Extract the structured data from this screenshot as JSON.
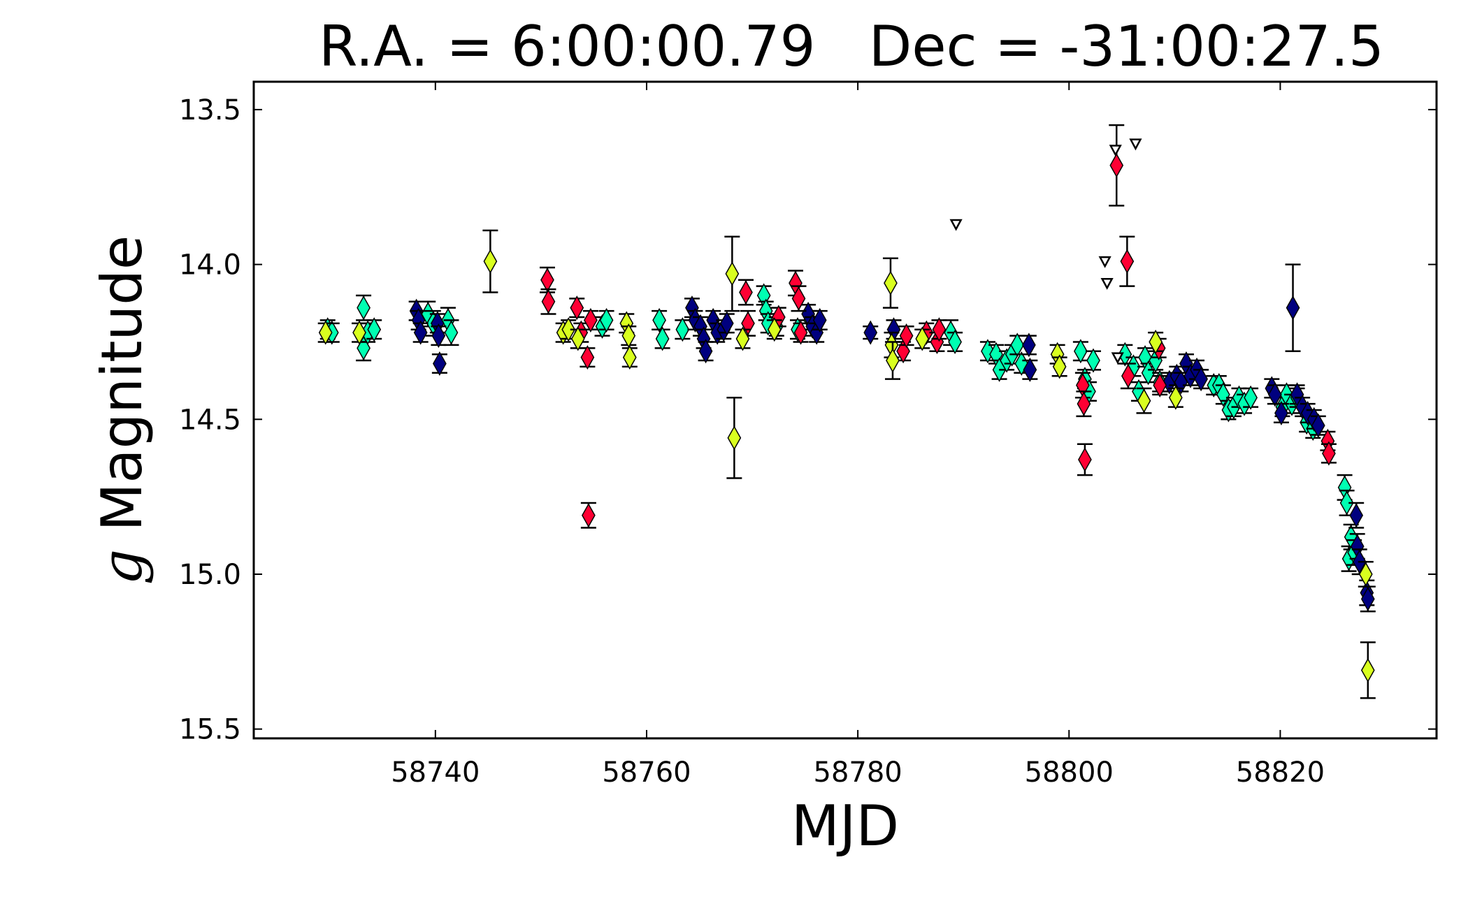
{
  "chart_data": {
    "type": "scatter",
    "title": "R.A. = 6:00:00.79   Dec = -31:00:27.5",
    "xlabel": "MJD",
    "ylabel_italic": "g",
    "ylabel_rest": " Magnitude",
    "xlim": [
      58722.8,
      58834.8
    ],
    "ylim": [
      15.53,
      13.41
    ],
    "y_inverted": true,
    "grid": false,
    "xticks": [
      58740,
      58760,
      58780,
      58800,
      58820
    ],
    "xtick_labels": [
      "58740",
      "58760",
      "58780",
      "58800",
      "58820"
    ],
    "yticks": [
      13.5,
      14.0,
      14.5,
      15.0,
      15.5
    ],
    "ytick_labels": [
      "13.5",
      "14.0",
      "14.5",
      "15.0",
      "15.5"
    ],
    "series": [
      {
        "color": "#00ffb2",
        "marker": "diamond",
        "points": [
          [
            58729.8,
            14.21,
            0.03
          ],
          [
            58730.2,
            14.22,
            0.03
          ],
          [
            58733.2,
            14.14,
            0.04
          ],
          [
            58733.2,
            14.27,
            0.04
          ],
          [
            58733.6,
            14.22,
            0.03
          ],
          [
            58734.2,
            14.21,
            0.03
          ],
          [
            58739.3,
            14.16,
            0.04
          ],
          [
            58739.8,
            14.19,
            0.04
          ],
          [
            58741.2,
            14.18,
            0.04
          ],
          [
            58741.5,
            14.22,
            0.04
          ],
          [
            58755.8,
            14.2,
            0.03
          ],
          [
            58756.2,
            14.18,
            0.03
          ],
          [
            58761.2,
            14.18,
            0.03
          ],
          [
            58761.5,
            14.24,
            0.03
          ],
          [
            58763.4,
            14.21,
            0.03
          ],
          [
            58771.1,
            14.1,
            0.03
          ],
          [
            58771.3,
            14.15,
            0.03
          ],
          [
            58771.5,
            14.19,
            0.03
          ],
          [
            58772.3,
            14.2,
            0.03
          ],
          [
            58774.3,
            14.21,
            0.03
          ],
          [
            58775.5,
            14.18,
            0.03
          ],
          [
            58788.8,
            14.22,
            0.04
          ],
          [
            58789.2,
            14.25,
            0.03
          ],
          [
            58792.3,
            14.28,
            0.03
          ],
          [
            58793.1,
            14.29,
            0.03
          ],
          [
            58793.4,
            14.34,
            0.03
          ],
          [
            58794.1,
            14.31,
            0.03
          ],
          [
            58794.6,
            14.29,
            0.03
          ],
          [
            58795.1,
            14.26,
            0.03
          ],
          [
            58795.5,
            14.32,
            0.03
          ],
          [
            58801.1,
            14.28,
            0.03
          ],
          [
            58801.5,
            14.37,
            0.03
          ],
          [
            58801.9,
            14.41,
            0.03
          ],
          [
            58802.3,
            14.31,
            0.03
          ],
          [
            58805.3,
            14.29,
            0.03
          ],
          [
            58806.1,
            14.33,
            0.03
          ],
          [
            58806.6,
            14.41,
            0.03
          ],
          [
            58807.2,
            14.3,
            0.03
          ],
          [
            58807.5,
            14.35,
            0.03
          ],
          [
            58808.2,
            14.31,
            0.03
          ],
          [
            58808.6,
            14.38,
            0.03
          ],
          [
            58813.7,
            14.39,
            0.03
          ],
          [
            58814.2,
            14.39,
            0.03
          ],
          [
            58814.6,
            14.42,
            0.03
          ],
          [
            58815.1,
            14.47,
            0.03
          ],
          [
            58815.6,
            14.46,
            0.03
          ],
          [
            58816.1,
            14.43,
            0.03
          ],
          [
            58816.6,
            14.45,
            0.03
          ],
          [
            58817.2,
            14.43,
            0.03
          ],
          [
            58820.2,
            14.46,
            0.03
          ],
          [
            58820.6,
            14.42,
            0.03
          ],
          [
            58821.1,
            14.45,
            0.03
          ],
          [
            58821.6,
            14.43,
            0.03
          ],
          [
            58822.5,
            14.51,
            0.03
          ],
          [
            58823.1,
            14.53,
            0.03
          ],
          [
            58826.1,
            14.72,
            0.04
          ],
          [
            58826.3,
            14.77,
            0.04
          ],
          [
            58826.5,
            14.95,
            0.04
          ],
          [
            58826.7,
            14.88,
            0.04
          ],
          [
            58827.0,
            14.93,
            0.04
          ]
        ]
      },
      {
        "color": "#00007f",
        "marker": "diamond",
        "points": [
          [
            58738.2,
            14.15,
            0.03
          ],
          [
            58738.4,
            14.18,
            0.03
          ],
          [
            58738.6,
            14.22,
            0.03
          ],
          [
            58740.2,
            14.19,
            0.03
          ],
          [
            58740.3,
            14.23,
            0.03
          ],
          [
            58740.4,
            14.32,
            0.03
          ],
          [
            58764.3,
            14.14,
            0.03
          ],
          [
            58764.6,
            14.18,
            0.03
          ],
          [
            58765.1,
            14.2,
            0.03
          ],
          [
            58765.4,
            14.24,
            0.03
          ],
          [
            58765.6,
            14.28,
            0.03
          ],
          [
            58766.3,
            14.18,
            0.03
          ],
          [
            58766.7,
            14.22,
            0.03
          ],
          [
            58767.3,
            14.21,
            0.03
          ],
          [
            58767.6,
            14.19,
            0.03
          ],
          [
            58775.3,
            14.16,
            0.03
          ],
          [
            58775.7,
            14.2,
            0.03
          ],
          [
            58776.1,
            14.22,
            0.03
          ],
          [
            58776.4,
            14.18,
            0.03
          ],
          [
            58781.2,
            14.22,
            0.02
          ],
          [
            58783.4,
            14.21,
            0.03
          ],
          [
            58796.2,
            14.26,
            0.03
          ],
          [
            58796.3,
            14.34,
            0.03
          ],
          [
            58809.5,
            14.38,
            0.03
          ],
          [
            58810.2,
            14.36,
            0.03
          ],
          [
            58810.6,
            14.38,
            0.03
          ],
          [
            58811.1,
            14.32,
            0.03
          ],
          [
            58811.5,
            14.36,
            0.03
          ],
          [
            58812.1,
            14.34,
            0.03
          ],
          [
            58812.5,
            14.37,
            0.03
          ],
          [
            58819.2,
            14.4,
            0.03
          ],
          [
            58819.5,
            14.42,
            0.03
          ],
          [
            58820.1,
            14.48,
            0.03
          ],
          [
            58821.2,
            14.14,
            0.14
          ],
          [
            58821.6,
            14.42,
            0.03
          ],
          [
            58822.1,
            14.46,
            0.03
          ],
          [
            58822.6,
            14.48,
            0.03
          ],
          [
            58823.2,
            14.5,
            0.03
          ],
          [
            58823.6,
            14.52,
            0.03
          ],
          [
            58827.2,
            14.81,
            0.04
          ],
          [
            58827.3,
            14.91,
            0.04
          ],
          [
            58827.5,
            14.96,
            0.04
          ],
          [
            58828.2,
            15.06,
            0.04
          ],
          [
            58828.3,
            15.08,
            0.04
          ]
        ]
      },
      {
        "color": "#ff0033",
        "marker": "diamond",
        "points": [
          [
            58750.6,
            14.05,
            0.04
          ],
          [
            58750.7,
            14.12,
            0.04
          ],
          [
            58753.4,
            14.14,
            0.03
          ],
          [
            58753.8,
            14.22,
            0.03
          ],
          [
            58754.4,
            14.3,
            0.03
          ],
          [
            58754.5,
            14.81,
            0.04
          ],
          [
            58754.7,
            14.18,
            0.03
          ],
          [
            58769.4,
            14.09,
            0.04
          ],
          [
            58769.6,
            14.19,
            0.04
          ],
          [
            58772.5,
            14.17,
            0.03
          ],
          [
            58774.1,
            14.06,
            0.04
          ],
          [
            58774.4,
            14.11,
            0.04
          ],
          [
            58774.6,
            14.22,
            0.03
          ],
          [
            58784.3,
            14.28,
            0.03
          ],
          [
            58784.6,
            14.23,
            0.03
          ],
          [
            58786.5,
            14.22,
            0.03
          ],
          [
            58787.5,
            14.25,
            0.03
          ],
          [
            58787.7,
            14.21,
            0.03
          ],
          [
            58801.3,
            14.39,
            0.04
          ],
          [
            58801.4,
            14.45,
            0.04
          ],
          [
            58801.5,
            14.63,
            0.05
          ],
          [
            58804.5,
            13.68,
            0.13
          ],
          [
            58805.5,
            13.99,
            0.08
          ],
          [
            58805.6,
            14.36,
            0.04
          ],
          [
            58808.5,
            14.27,
            0.03
          ],
          [
            58808.6,
            14.39,
            0.03
          ],
          [
            58824.5,
            14.57,
            0.03
          ],
          [
            58824.6,
            14.61,
            0.03
          ]
        ]
      },
      {
        "color": "#d9ff1f",
        "marker": "diamond",
        "points": [
          [
            58729.6,
            14.22,
            0.03
          ],
          [
            58732.8,
            14.22,
            0.03
          ],
          [
            58745.2,
            13.99,
            0.1
          ],
          [
            58752.1,
            14.22,
            0.03
          ],
          [
            58752.6,
            14.21,
            0.03
          ],
          [
            58753.5,
            14.24,
            0.03
          ],
          [
            58758.1,
            14.19,
            0.03
          ],
          [
            58758.3,
            14.23,
            0.03
          ],
          [
            58758.4,
            14.3,
            0.03
          ],
          [
            58768.1,
            14.03,
            0.12
          ],
          [
            58768.3,
            14.56,
            0.13
          ],
          [
            58769.1,
            14.24,
            0.03
          ],
          [
            58772.1,
            14.21,
            0.03
          ],
          [
            58783.1,
            14.06,
            0.08
          ],
          [
            58783.2,
            14.26,
            0.04
          ],
          [
            58783.3,
            14.31,
            0.06
          ],
          [
            58786.1,
            14.24,
            0.03
          ],
          [
            58798.9,
            14.29,
            0.03
          ],
          [
            58799.1,
            14.33,
            0.03
          ],
          [
            58807.1,
            14.44,
            0.04
          ],
          [
            58808.2,
            14.25,
            0.03
          ],
          [
            58810.1,
            14.43,
            0.03
          ],
          [
            58828.1,
            15.0,
            0.04
          ],
          [
            58828.3,
            15.31,
            0.09
          ]
        ]
      },
      {
        "color": "#ffffff",
        "marker": "triangle_down",
        "upper_limit": true,
        "points": [
          [
            58789.3,
            13.87
          ],
          [
            58803.4,
            13.99
          ],
          [
            58803.6,
            14.06
          ],
          [
            58804.4,
            13.63
          ],
          [
            58804.6,
            14.3
          ],
          [
            58806.3,
            13.61
          ]
        ]
      }
    ]
  }
}
